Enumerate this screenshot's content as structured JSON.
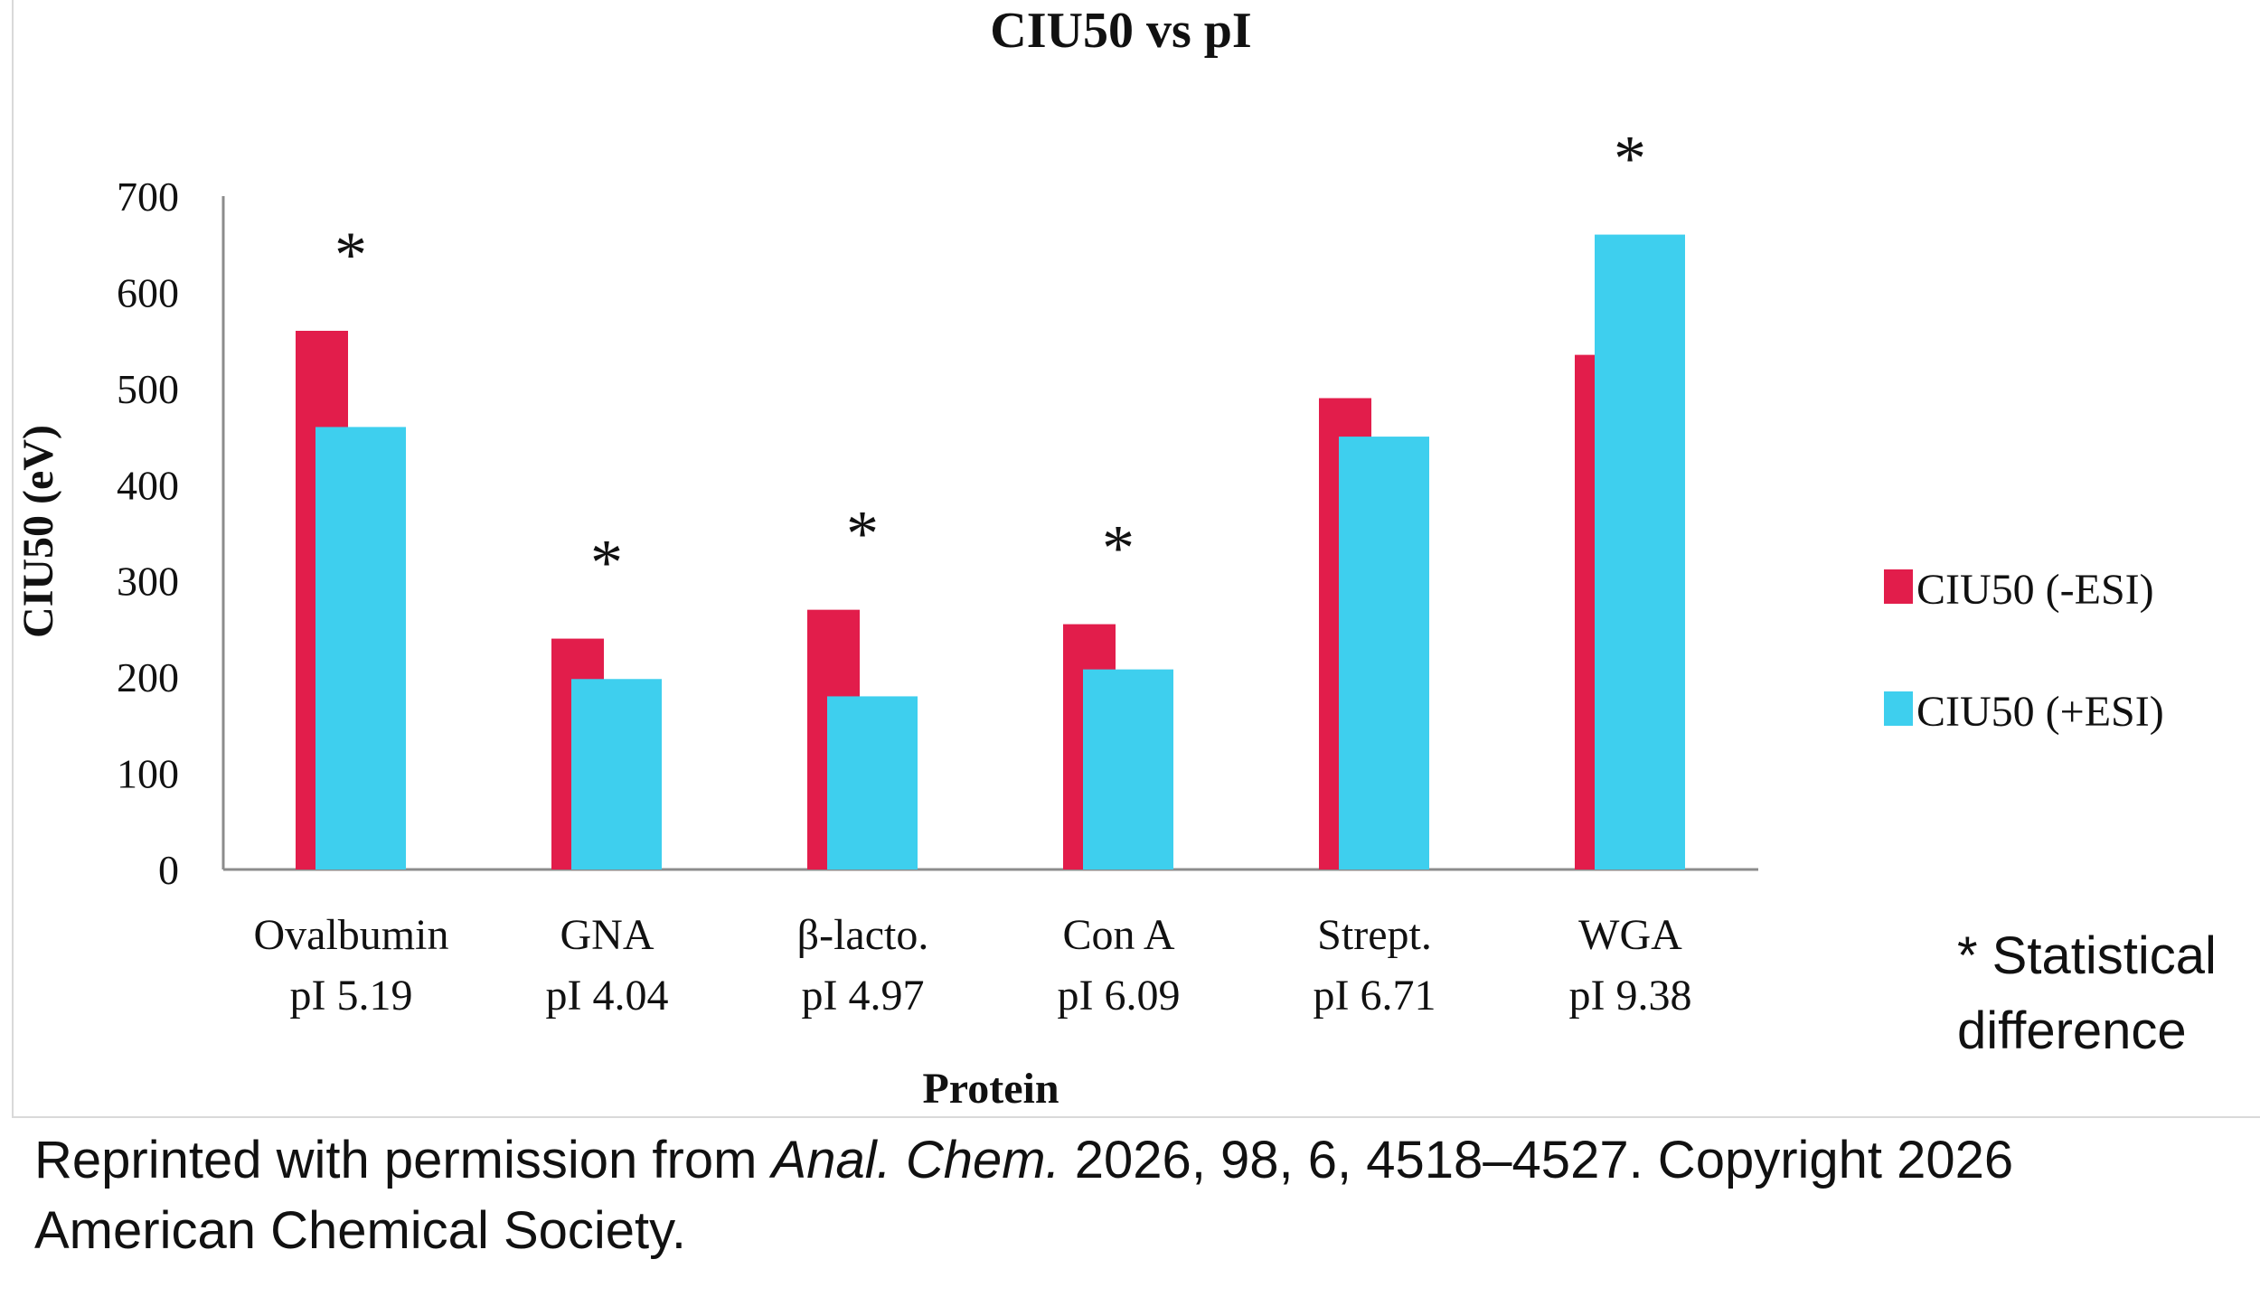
{
  "chart_data": {
    "type": "bar",
    "title": "CIU50 vs pI",
    "xlabel": "Protein",
    "ylabel": "CIU50 (eV)",
    "ylim": [
      0,
      700
    ],
    "yticks": [
      "0",
      "100",
      "200",
      "300",
      "400",
      "500",
      "600",
      "700"
    ],
    "categories": [
      {
        "name": "Ovalbumin",
        "pi": "pI 5.19"
      },
      {
        "name": "GNA",
        "pi": "pI 4.04"
      },
      {
        "name": "β-lacto.",
        "pi": "pI 4.97"
      },
      {
        "name": "Con A",
        "pi": "pI 6.09"
      },
      {
        "name": "Strept.",
        "pi": "pI 6.71"
      },
      {
        "name": "WGA",
        "pi": "pI 9.38"
      }
    ],
    "series": [
      {
        "name": "CIU50 (-ESI)",
        "color": "#e21d4b",
        "values": [
          560,
          240,
          270,
          255,
          490,
          535
        ]
      },
      {
        "name": "CIU50 (+ESI)",
        "color": "#3ecfee",
        "values": [
          460,
          198,
          180,
          208,
          450,
          660
        ]
      }
    ],
    "significance": [
      true,
      true,
      true,
      true,
      false,
      true
    ],
    "significance_mark": "*",
    "legend_position": "right",
    "note_line1": "* Statistical",
    "note_line2": "difference"
  },
  "caption": {
    "prefix": "Reprinted with permission from ",
    "journal": "Anal. Chem.",
    "suffix": " 2026, 98, 6, 4518–4527. Copyright 2026",
    "line2": "American Chemical Society."
  }
}
